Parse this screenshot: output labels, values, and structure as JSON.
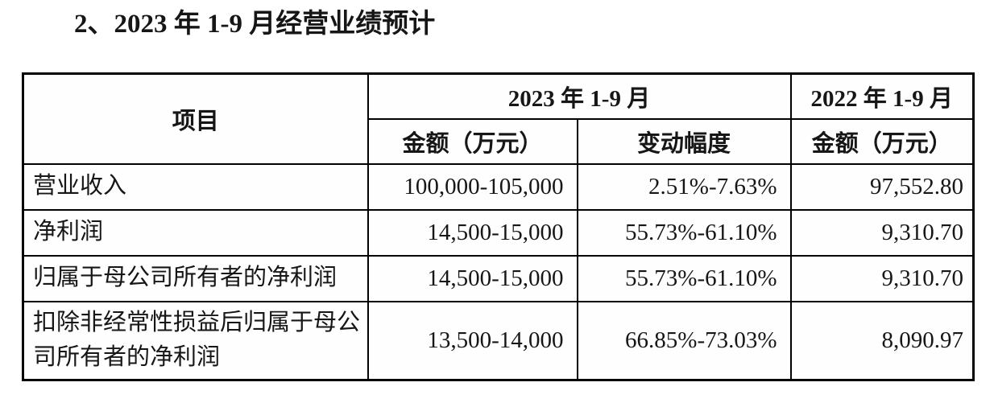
{
  "page": {
    "title": "2、2023 年 1-9 月经营业绩预计"
  },
  "colors": {
    "border": "#000000",
    "text": "#161616",
    "background": "#ffffff"
  },
  "table": {
    "headers": {
      "item": "项目",
      "period_2023": "2023 年 1-9 月",
      "period_2022": "2022 年 1-9 月",
      "amount_2023": "金额（万元）",
      "change": "变动幅度",
      "amount_2022": "金额（万元）"
    },
    "rows": [
      {
        "item": "营业收入",
        "amount_2023": "100,000-105,000",
        "change": "2.51%-7.63%",
        "amount_2022": "97,552.80"
      },
      {
        "item": "净利润",
        "amount_2023": "14,500-15,000",
        "change": "55.73%-61.10%",
        "amount_2022": "9,310.70"
      },
      {
        "item": "归属于母公司所有者的净利润",
        "amount_2023": "14,500-15,000",
        "change": "55.73%-61.10%",
        "amount_2022": "9,310.70"
      },
      {
        "item": "扣除非经常性损益后归属于母公司所有者的净利润",
        "amount_2023": "13,500-14,000",
        "change": "66.85%-73.03%",
        "amount_2022": "8,090.97"
      }
    ]
  }
}
